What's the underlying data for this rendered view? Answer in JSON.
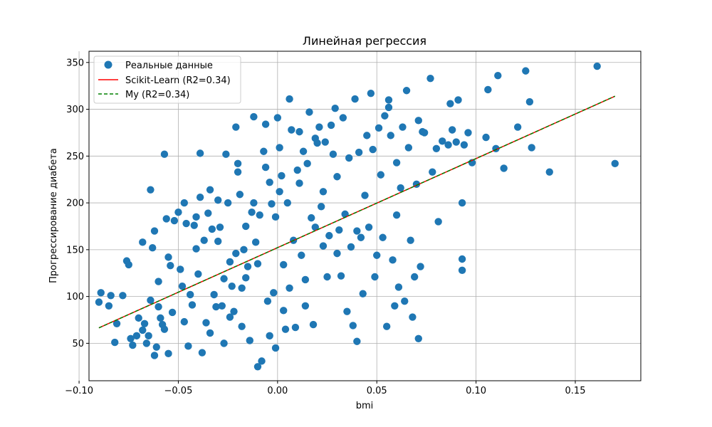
{
  "chart_data": {
    "type": "scatter",
    "title": "Линейная регрессия",
    "xlabel": "bmi",
    "ylabel": "Прогрессирование диабета",
    "xlim": [
      -0.095,
      0.183
    ],
    "ylim": [
      10,
      362
    ],
    "xticks": [
      -0.1,
      -0.05,
      0.0,
      0.05,
      0.1,
      0.15
    ],
    "xtick_labels": [
      "−0.10",
      "−0.05",
      "0.00",
      "0.05",
      "0.10",
      "0.15"
    ],
    "yticks": [
      50,
      100,
      150,
      200,
      250,
      300,
      350
    ],
    "ytick_labels": [
      "50",
      "100",
      "150",
      "200",
      "250",
      "300",
      "350"
    ],
    "grid": true,
    "legend_position": "top-left",
    "series": [
      {
        "name": "Реальные данные",
        "kind": "scatter",
        "color": "#1f77b4",
        "points": [
          [
            -0.09,
            94
          ],
          [
            -0.089,
            104
          ],
          [
            -0.085,
            90
          ],
          [
            -0.084,
            101
          ],
          [
            -0.082,
            51
          ],
          [
            -0.081,
            71
          ],
          [
            -0.078,
            101
          ],
          [
            -0.076,
            138
          ],
          [
            -0.075,
            134
          ],
          [
            -0.074,
            55
          ],
          [
            -0.073,
            48
          ],
          [
            -0.071,
            58
          ],
          [
            -0.07,
            77
          ],
          [
            -0.068,
            158
          ],
          [
            -0.068,
            64
          ],
          [
            -0.067,
            71
          ],
          [
            -0.066,
            50
          ],
          [
            -0.065,
            58
          ],
          [
            -0.064,
            96
          ],
          [
            -0.064,
            214
          ],
          [
            -0.063,
            152
          ],
          [
            -0.062,
            170
          ],
          [
            -0.062,
            37
          ],
          [
            -0.061,
            46
          ],
          [
            -0.06,
            116
          ],
          [
            -0.06,
            89
          ],
          [
            -0.059,
            77
          ],
          [
            -0.058,
            70
          ],
          [
            -0.057,
            65
          ],
          [
            -0.057,
            252
          ],
          [
            -0.056,
            183
          ],
          [
            -0.055,
            39
          ],
          [
            -0.055,
            142
          ],
          [
            -0.054,
            133
          ],
          [
            -0.053,
            83
          ],
          [
            -0.052,
            181
          ],
          [
            -0.05,
            190
          ],
          [
            -0.049,
            129
          ],
          [
            -0.048,
            111
          ],
          [
            -0.047,
            200
          ],
          [
            -0.047,
            73
          ],
          [
            -0.046,
            178
          ],
          [
            -0.045,
            47
          ],
          [
            -0.044,
            102
          ],
          [
            -0.043,
            91
          ],
          [
            -0.042,
            176
          ],
          [
            -0.041,
            185
          ],
          [
            -0.041,
            151
          ],
          [
            -0.04,
            124
          ],
          [
            -0.039,
            206
          ],
          [
            -0.039,
            253
          ],
          [
            -0.038,
            40
          ],
          [
            -0.037,
            160
          ],
          [
            -0.036,
            72
          ],
          [
            -0.035,
            189
          ],
          [
            -0.034,
            214
          ],
          [
            -0.034,
            61
          ],
          [
            -0.033,
            172
          ],
          [
            -0.032,
            102
          ],
          [
            -0.031,
            89
          ],
          [
            -0.03,
            203
          ],
          [
            -0.03,
            159
          ],
          [
            -0.029,
            174
          ],
          [
            -0.028,
            90
          ],
          [
            -0.027,
            50
          ],
          [
            -0.027,
            119
          ],
          [
            -0.026,
            252
          ],
          [
            -0.025,
            200
          ],
          [
            -0.024,
            137
          ],
          [
            -0.024,
            78
          ],
          [
            -0.023,
            111
          ],
          [
            -0.022,
            84
          ],
          [
            -0.021,
            146
          ],
          [
            -0.021,
            281
          ],
          [
            -0.02,
            233
          ],
          [
            -0.02,
            242
          ],
          [
            -0.019,
            209
          ],
          [
            -0.018,
            109
          ],
          [
            -0.018,
            68
          ],
          [
            -0.017,
            150
          ],
          [
            -0.016,
            120
          ],
          [
            -0.016,
            175
          ],
          [
            -0.015,
            132
          ],
          [
            -0.014,
            53
          ],
          [
            -0.013,
            190
          ],
          [
            -0.012,
            292
          ],
          [
            -0.012,
            200
          ],
          [
            -0.011,
            158
          ],
          [
            -0.01,
            135
          ],
          [
            -0.01,
            25
          ],
          [
            -0.009,
            187
          ],
          [
            -0.008,
            31
          ],
          [
            -0.007,
            255
          ],
          [
            -0.006,
            284
          ],
          [
            -0.006,
            238
          ],
          [
            -0.005,
            95
          ],
          [
            -0.004,
            222
          ],
          [
            -0.004,
            58
          ],
          [
            -0.003,
            199
          ],
          [
            -0.002,
            104
          ],
          [
            -0.001,
            185
          ],
          [
            -0.001,
            45
          ],
          [
            0.0,
            291
          ],
          [
            0.001,
            259
          ],
          [
            0.001,
            212
          ],
          [
            0.002,
            229
          ],
          [
            0.003,
            134
          ],
          [
            0.003,
            85
          ],
          [
            0.004,
            65
          ],
          [
            0.005,
            200
          ],
          [
            0.006,
            109
          ],
          [
            0.006,
            311
          ],
          [
            0.007,
            278
          ],
          [
            0.008,
            160
          ],
          [
            0.009,
            67
          ],
          [
            0.01,
            235
          ],
          [
            0.011,
            221
          ],
          [
            0.011,
            276
          ],
          [
            0.012,
            144
          ],
          [
            0.013,
            255
          ],
          [
            0.014,
            118
          ],
          [
            0.014,
            90
          ],
          [
            0.015,
            242
          ],
          [
            0.016,
            297
          ],
          [
            0.017,
            184
          ],
          [
            0.018,
            70
          ],
          [
            0.019,
            174
          ],
          [
            0.019,
            269
          ],
          [
            0.02,
            264
          ],
          [
            0.021,
            281
          ],
          [
            0.022,
            196
          ],
          [
            0.023,
            154
          ],
          [
            0.023,
            212
          ],
          [
            0.024,
            265
          ],
          [
            0.025,
            121
          ],
          [
            0.026,
            165
          ],
          [
            0.027,
            283
          ],
          [
            0.028,
            252
          ],
          [
            0.029,
            301
          ],
          [
            0.03,
            146
          ],
          [
            0.03,
            228
          ],
          [
            0.031,
            171
          ],
          [
            0.032,
            122
          ],
          [
            0.033,
            291
          ],
          [
            0.034,
            188
          ],
          [
            0.035,
            84
          ],
          [
            0.036,
            248
          ],
          [
            0.037,
            153
          ],
          [
            0.038,
            69
          ],
          [
            0.039,
            311
          ],
          [
            0.04,
            170
          ],
          [
            0.04,
            52
          ],
          [
            0.041,
            254
          ],
          [
            0.042,
            163
          ],
          [
            0.043,
            103
          ],
          [
            0.044,
            208
          ],
          [
            0.045,
            272
          ],
          [
            0.046,
            174
          ],
          [
            0.047,
            317
          ],
          [
            0.048,
            257
          ],
          [
            0.049,
            121
          ],
          [
            0.05,
            144
          ],
          [
            0.051,
            280
          ],
          [
            0.052,
            230
          ],
          [
            0.053,
            163
          ],
          [
            0.054,
            293
          ],
          [
            0.055,
            68
          ],
          [
            0.056,
            310
          ],
          [
            0.056,
            302
          ],
          [
            0.057,
            272
          ],
          [
            0.058,
            139
          ],
          [
            0.059,
            90
          ],
          [
            0.06,
            187
          ],
          [
            0.06,
            243
          ],
          [
            0.061,
            110
          ],
          [
            0.062,
            216
          ],
          [
            0.063,
            281
          ],
          [
            0.064,
            95
          ],
          [
            0.065,
            320
          ],
          [
            0.066,
            259
          ],
          [
            0.067,
            160
          ],
          [
            0.068,
            78
          ],
          [
            0.069,
            121
          ],
          [
            0.07,
            220
          ],
          [
            0.071,
            288
          ],
          [
            0.071,
            55
          ],
          [
            0.072,
            132
          ],
          [
            0.073,
            276
          ],
          [
            0.074,
            275
          ],
          [
            0.077,
            333
          ],
          [
            0.078,
            233
          ],
          [
            0.08,
            258
          ],
          [
            0.081,
            180
          ],
          [
            0.083,
            266
          ],
          [
            0.086,
            262
          ],
          [
            0.087,
            306
          ],
          [
            0.088,
            278
          ],
          [
            0.09,
            265
          ],
          [
            0.091,
            310
          ],
          [
            0.093,
            200
          ],
          [
            0.093,
            140
          ],
          [
            0.093,
            128
          ],
          [
            0.094,
            262
          ],
          [
            0.096,
            275
          ],
          [
            0.098,
            243
          ],
          [
            0.105,
            270
          ],
          [
            0.106,
            321
          ],
          [
            0.11,
            258
          ],
          [
            0.111,
            336
          ],
          [
            0.114,
            237
          ],
          [
            0.121,
            281
          ],
          [
            0.125,
            341
          ],
          [
            0.127,
            308
          ],
          [
            0.128,
            259
          ],
          [
            0.137,
            233
          ],
          [
            0.161,
            346
          ],
          [
            0.17,
            242
          ]
        ]
      },
      {
        "name": "Scikit-Learn (R2=0.34)",
        "kind": "line",
        "style": "solid",
        "color": "#ff0000",
        "x": [
          -0.09,
          0.17
        ],
        "y": [
          66.5,
          314.0
        ]
      },
      {
        "name": "My (R2=0.34)",
        "kind": "line",
        "style": "dashed",
        "color": "#008000",
        "x": [
          -0.09,
          0.17
        ],
        "y": [
          66.5,
          314.0
        ]
      }
    ]
  }
}
